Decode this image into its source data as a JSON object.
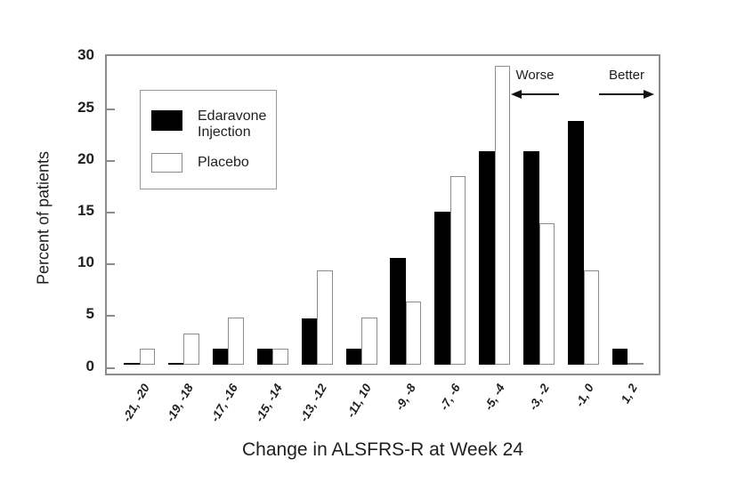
{
  "chart_data": {
    "type": "bar",
    "title": "",
    "xlabel": "Change in ALSFRS-R at Week 24",
    "ylabel": "Percent of patients",
    "categories": [
      "-21, -20",
      "-19, -18",
      "-17, -16",
      "-15, -14",
      "-13, -12",
      "-11, 10",
      "-9, -8",
      "-7, -6",
      "-5, -4",
      "-3, -2",
      "-1, 0",
      "1, 2"
    ],
    "series": [
      {
        "name": "Edaravone Injection",
        "color": "#000000",
        "values": [
          0,
          0,
          1.5,
          1.5,
          4.4,
          1.5,
          10.3,
          14.7,
          20.6,
          20.6,
          23.5,
          1.5
        ]
      },
      {
        "name": "Placebo",
        "color": "#ffffff",
        "values": [
          1.5,
          3.0,
          4.5,
          1.5,
          9.1,
          4.5,
          6.1,
          18.2,
          28.8,
          13.6,
          9.1,
          0
        ]
      }
    ],
    "ylim": [
      0,
      30
    ],
    "yticks": [
      0,
      5,
      10,
      15,
      20,
      25,
      30
    ],
    "grid": "off",
    "legend_position": "upper-left",
    "annotations": [
      {
        "label": "Worse",
        "direction": "left"
      },
      {
        "label": "Better",
        "direction": "right"
      }
    ],
    "frame_color": "#8c8c8c",
    "bar_outline_color": "#8c8c8c"
  }
}
